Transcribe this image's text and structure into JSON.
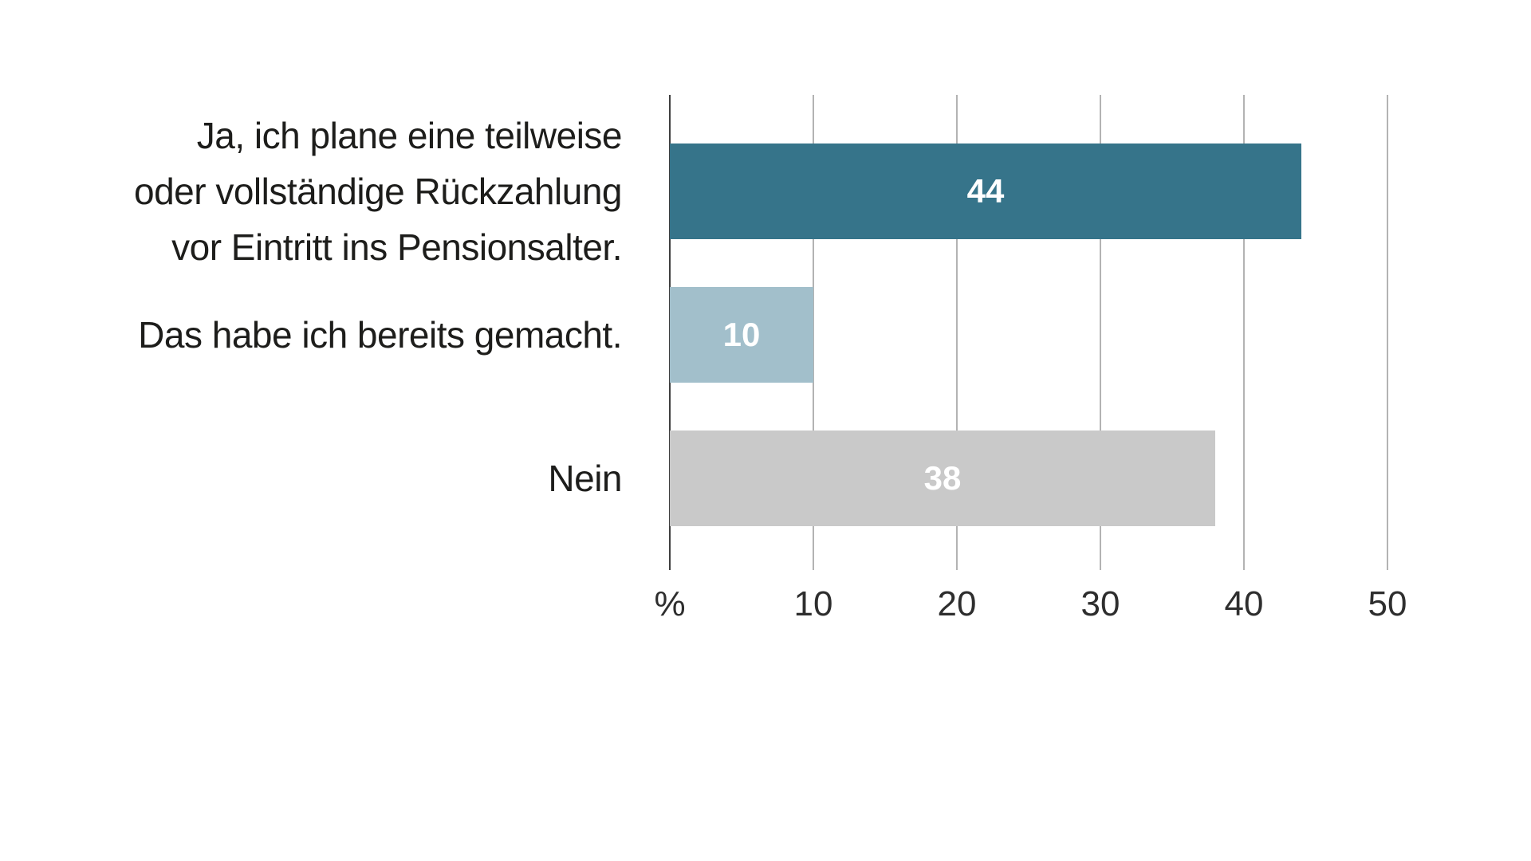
{
  "background_color": "#ffffff",
  "chart_data": {
    "type": "bar",
    "orientation": "horizontal",
    "title": "",
    "categories": [
      "Ja, ich plane eine teilweise\noder vollständige Rückzahlung\nvor Eintritt ins Pensionsalter.",
      "Das habe ich bereits gemacht.",
      "Nein"
    ],
    "values": [
      44,
      10,
      38
    ],
    "value_labels": [
      "44",
      "10",
      "38"
    ],
    "bar_colors": [
      "#36748a",
      "#a2bfcb",
      "#c9c9c9"
    ],
    "xlabel": "%",
    "ylabel": "",
    "xlim": [
      0,
      50
    ],
    "x_ticks": [
      0,
      10,
      20,
      30,
      40,
      50
    ],
    "x_tick_labels": [
      "%",
      "10",
      "20",
      "30",
      "40",
      "50"
    ],
    "grid": true,
    "legend_position": "none"
  },
  "style": {
    "gridline_color": "#b3b3b3",
    "zero_axis_color": "#3f3f3f",
    "category_label_color": "#1d1d1b",
    "tick_label_color": "#2e2e2e",
    "value_label_color": "#ffffff"
  }
}
